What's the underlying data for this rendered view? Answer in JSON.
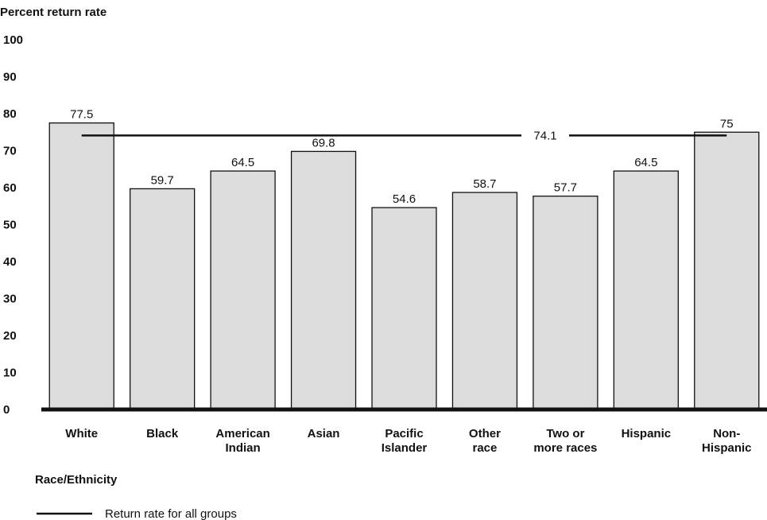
{
  "chart_data": {
    "type": "bar",
    "ylabel": "Percent return rate",
    "xlabel": "Race/Ethnicity",
    "ylim": [
      0,
      100
    ],
    "yticks": [
      "0",
      "10",
      "20",
      "30",
      "40",
      "50",
      "60",
      "70",
      "80",
      "90",
      "100"
    ],
    "categories": [
      [
        "White"
      ],
      [
        "Black"
      ],
      [
        "American",
        "Indian"
      ],
      [
        "Asian"
      ],
      [
        "Pacific",
        "Islander"
      ],
      [
        "Other",
        "race"
      ],
      [
        "Two or",
        "more races"
      ],
      [
        "Hispanic"
      ],
      [
        "Non-",
        "Hispanic"
      ]
    ],
    "values": [
      77.5,
      59.7,
      64.5,
      69.8,
      54.6,
      58.7,
      57.7,
      64.5,
      75
    ],
    "value_labels": [
      "77.5",
      "59.7",
      "64.5",
      "69.8",
      "54.6",
      "58.7",
      "57.7",
      "64.5",
      "75"
    ],
    "reference_line": {
      "value": 74.1,
      "label": "74.1"
    },
    "legend": {
      "label": "Return rate for all groups",
      "placement": "bottom-left"
    },
    "colors": {
      "bar_fill": "#dcdcdc",
      "bar_stroke": "#111111",
      "axis": "#111111",
      "line": "#111111"
    },
    "grid": false
  }
}
